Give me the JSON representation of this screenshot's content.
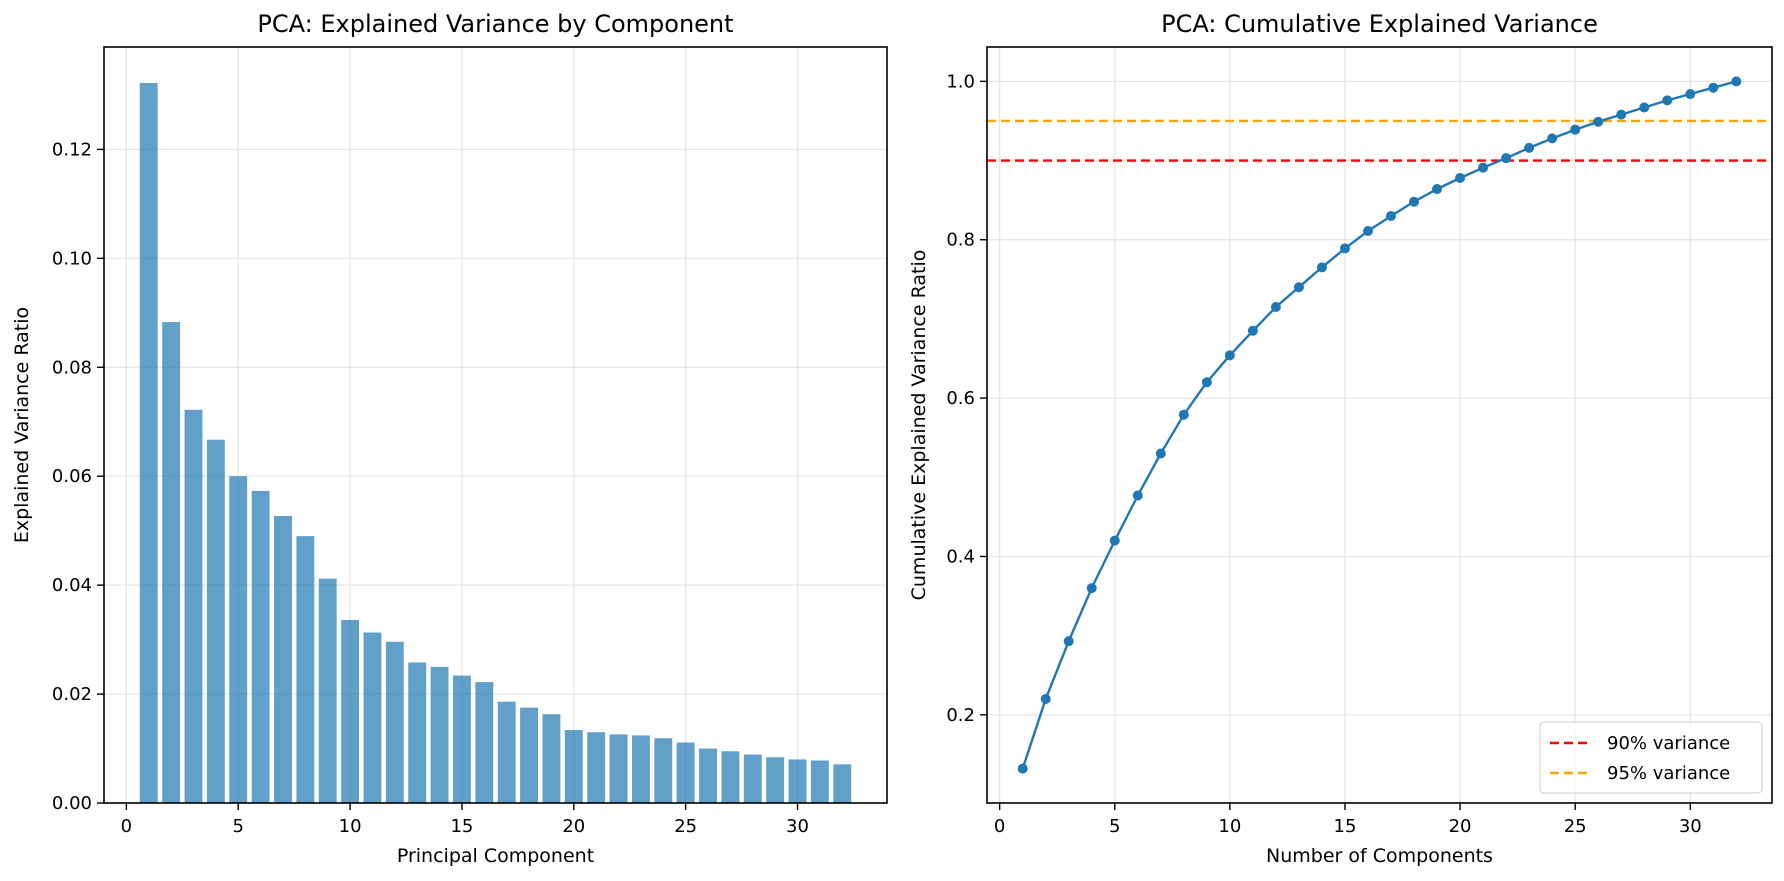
{
  "colors": {
    "bar": "#1f77b4",
    "line": "#1f77b4",
    "threshold_90": "#ff0000",
    "threshold_95": "#ffa500",
    "grid": "#e5e5e5",
    "axis": "#000000"
  },
  "chart_data": [
    {
      "type": "bar",
      "title": "PCA: Explained Variance by Component",
      "xlabel": "Principal Component",
      "ylabel": "Explained Variance Ratio",
      "x": [
        1,
        2,
        3,
        4,
        5,
        6,
        7,
        8,
        9,
        10,
        11,
        12,
        13,
        14,
        15,
        16,
        17,
        18,
        19,
        20,
        21,
        22,
        23,
        24,
        25,
        26,
        27,
        28,
        29,
        30,
        31,
        32
      ],
      "values": [
        0.1322,
        0.0883,
        0.0722,
        0.0667,
        0.06,
        0.0573,
        0.0527,
        0.049,
        0.0412,
        0.0336,
        0.0313,
        0.0296,
        0.0258,
        0.025,
        0.0234,
        0.0222,
        0.0186,
        0.0175,
        0.0163,
        0.0134,
        0.013,
        0.0126,
        0.0124,
        0.0119,
        0.0111,
        0.01,
        0.0095,
        0.0089,
        0.0084,
        0.008,
        0.0078,
        0.0071
      ],
      "xlim": [
        -1,
        34
      ],
      "ylim": [
        0,
        0.1388
      ],
      "xticks": [
        0,
        5,
        10,
        15,
        20,
        25,
        30
      ],
      "yticks": [
        0,
        0.02,
        0.04,
        0.06,
        0.08,
        0.1,
        0.12
      ],
      "ytick_labels": [
        "0.00",
        "0.02",
        "0.04",
        "0.06",
        "0.08",
        "0.10",
        "0.12"
      ],
      "grid": true,
      "bar_alpha": 0.7
    },
    {
      "type": "line",
      "title": "PCA: Cumulative Explained Variance",
      "xlabel": "Number of Components",
      "ylabel": "Cumulative Explained Variance Ratio",
      "x": [
        1,
        2,
        3,
        4,
        5,
        6,
        7,
        8,
        9,
        10,
        11,
        12,
        13,
        14,
        15,
        16,
        17,
        18,
        19,
        20,
        21,
        22,
        23,
        24,
        25,
        26,
        27,
        28,
        29,
        30,
        31,
        32
      ],
      "series": [
        {
          "values": [
            0.132,
            0.22,
            0.293,
            0.36,
            0.42,
            0.477,
            0.53,
            0.579,
            0.62,
            0.654,
            0.685,
            0.715,
            0.74,
            0.765,
            0.789,
            0.811,
            0.83,
            0.848,
            0.864,
            0.878,
            0.891,
            0.903,
            0.916,
            0.928,
            0.939,
            0.949,
            0.958,
            0.967,
            0.976,
            0.984,
            0.992,
            1.0
          ]
        }
      ],
      "thresholds": [
        {
          "label": "90% variance",
          "value": 0.9,
          "color": "#ff0000",
          "style": "dashed"
        },
        {
          "label": "95% variance",
          "value": 0.95,
          "color": "#ffa500",
          "style": "dashed"
        }
      ],
      "xlim": [
        -0.55,
        33.55
      ],
      "ylim": [
        0.0886,
        1.0434
      ],
      "xticks": [
        0,
        5,
        10,
        15,
        20,
        25,
        30
      ],
      "yticks": [
        0.2,
        0.4,
        0.6,
        0.8,
        1.0
      ],
      "ytick_labels": [
        "0.2",
        "0.4",
        "0.6",
        "0.8",
        "1.0"
      ],
      "grid": true,
      "legend_position": "lower-right"
    }
  ]
}
